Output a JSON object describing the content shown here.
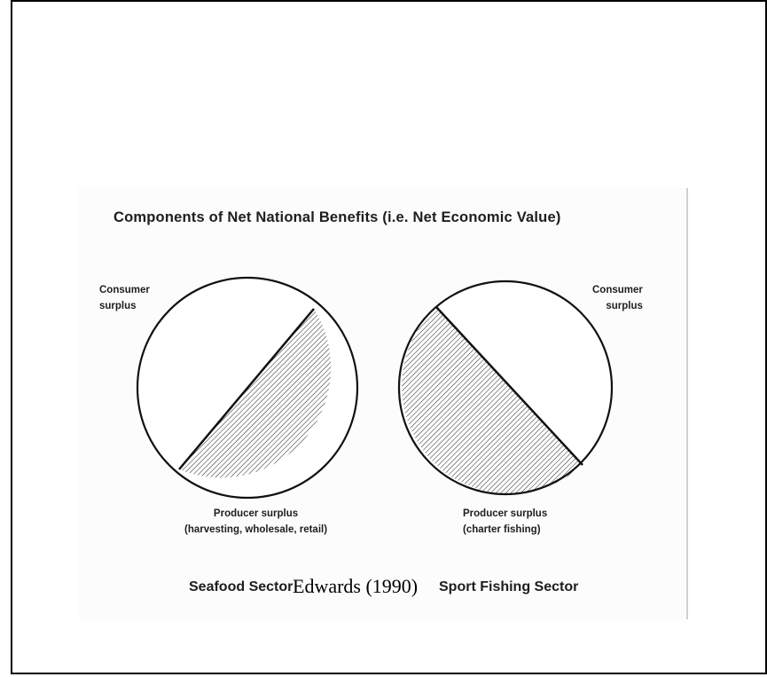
{
  "title": "Components of   Net National Benefits  (i.e. Net Economic Value)",
  "left_pie": {
    "consumer_label_line1": "Consumer",
    "consumer_label_line2": "surplus",
    "producer_label_line1": "Producer surplus",
    "producer_label_line2": "(harvesting, wholesale, retail)",
    "sector": "Seafood Sector"
  },
  "right_pie": {
    "consumer_label_line1": "Consumer",
    "consumer_label_line2": "surplus",
    "producer_label_line1": "Producer surplus",
    "producer_label_line2": "(charter fishing)",
    "sector": "Sport Fishing Sector"
  },
  "caption": "Edwards (1990)"
}
